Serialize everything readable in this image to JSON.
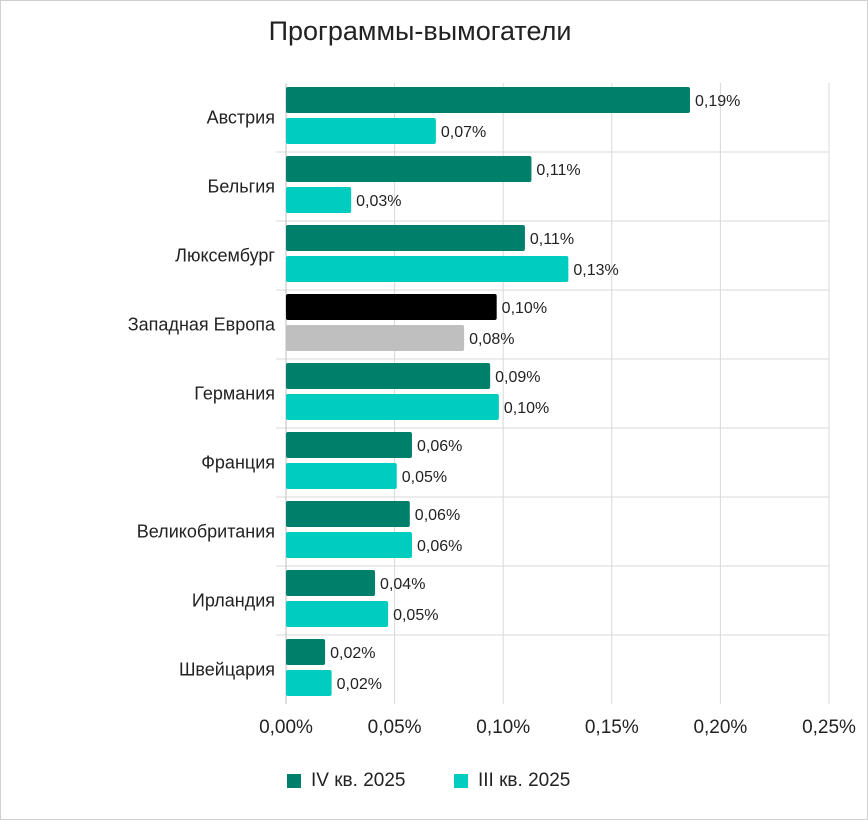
{
  "chart_data": {
    "type": "bar",
    "orientation": "horizontal",
    "title": "Программы-вымогатели",
    "categories": [
      "Австрия",
      "Бельгия",
      "Люксембург",
      "Западная Европа",
      "Германия",
      "Франция",
      "Великобритания",
      "Ирландия",
      "Швейцария"
    ],
    "series": [
      {
        "name": "IV кв. 2025",
        "color": "#00806b",
        "highlight_color": "#000000",
        "values": [
          0.186,
          0.113,
          0.11,
          0.097,
          0.094,
          0.058,
          0.057,
          0.041,
          0.018
        ],
        "labels": [
          "0,19%",
          "0,11%",
          "0,11%",
          "0,10%",
          "0,09%",
          "0,06%",
          "0,06%",
          "0,04%",
          "0,02%"
        ]
      },
      {
        "name": "III кв. 2025",
        "color": "#00cdc0",
        "highlight_color": "#bfbfbf",
        "values": [
          0.069,
          0.03,
          0.13,
          0.082,
          0.098,
          0.051,
          0.058,
          0.047,
          0.021
        ],
        "labels": [
          "0,07%",
          "0,03%",
          "0,13%",
          "0,08%",
          "0,10%",
          "0,05%",
          "0,06%",
          "0,05%",
          "0,02%"
        ]
      }
    ],
    "highlight_category": "Западная Европа",
    "xlim": [
      0,
      0.25
    ],
    "xticks": [
      0,
      0.05,
      0.1,
      0.15,
      0.2,
      0.25
    ],
    "xtick_labels": [
      "0,00%",
      "0,05%",
      "0,10%",
      "0,15%",
      "0,20%",
      "0,25%"
    ],
    "grid": true,
    "legend_position": "bottom"
  }
}
